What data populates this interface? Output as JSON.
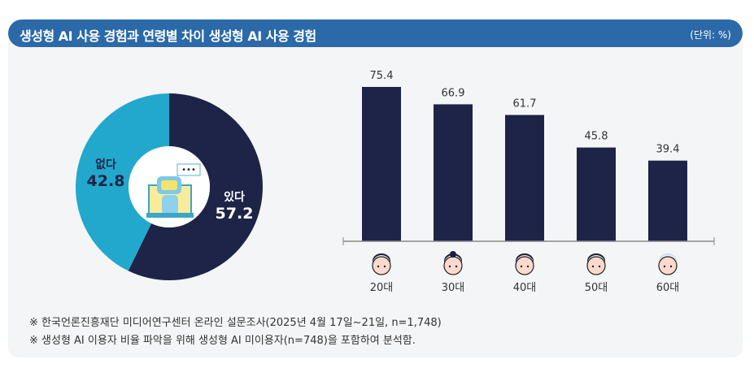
{
  "header": {
    "title": "생성형 AI 사용 경험과 연령별 차이 생성형 AI 사용 경험",
    "unit": "(단위: %)"
  },
  "chart_data": [
    {
      "type": "pie",
      "donut": true,
      "labels": [
        "있다",
        "없다"
      ],
      "values": [
        57.2,
        42.8
      ],
      "colors": [
        "#1e2447",
        "#22a8cc"
      ],
      "center_icon": "robot-icon"
    },
    {
      "type": "bar",
      "categories": [
        "20대",
        "30대",
        "40대",
        "50대",
        "60대"
      ],
      "values": [
        75.4,
        66.9,
        61.7,
        45.8,
        39.4
      ],
      "color": "#1e2447",
      "category_icons": [
        "face-20s-icon",
        "face-30s-icon",
        "face-40s-icon",
        "face-50s-icon",
        "face-60s-icon"
      ],
      "ylim": [
        0,
        80
      ],
      "grid": false
    }
  ],
  "footnotes": [
    "※ 한국언론진흥재단 미디어연구센터 온라인 설문조사(2025년 4월 17일~21일, n=1,748)",
    "※ 생성형 AI 이용자 비율 파악을 위해 생성형 AI 미이용자(n=748)을 포함하여 분석함."
  ]
}
